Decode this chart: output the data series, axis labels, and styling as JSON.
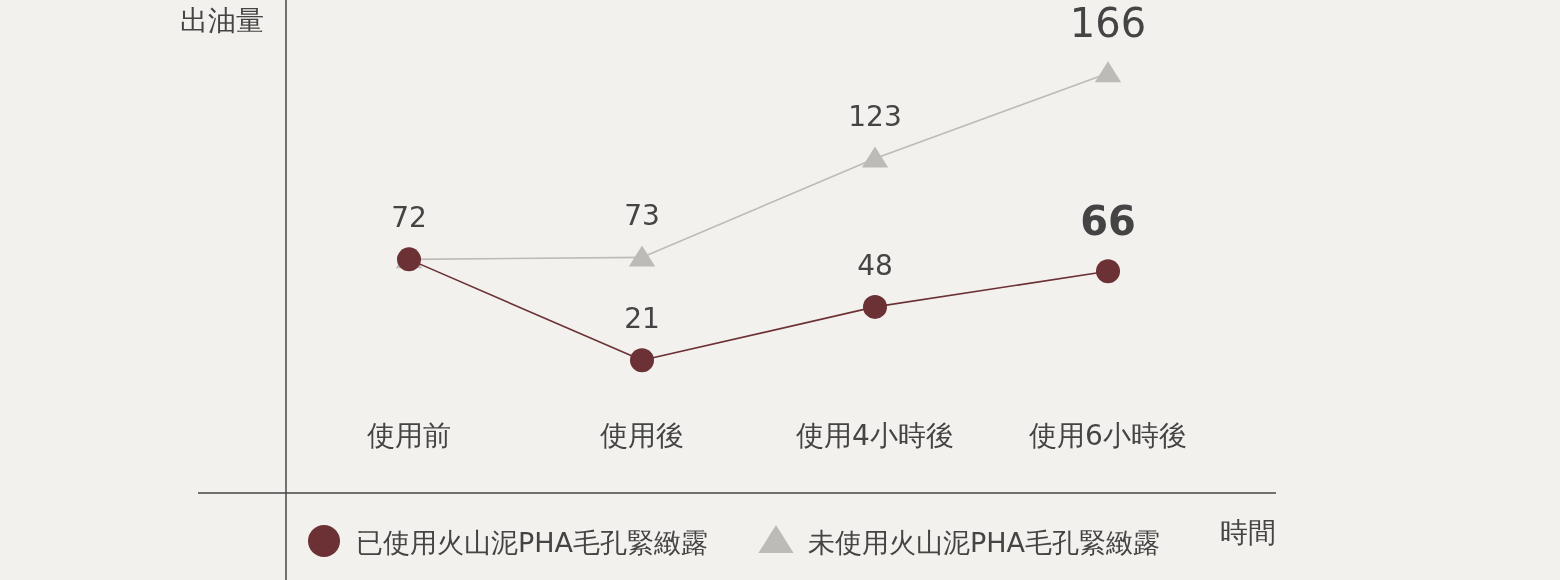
{
  "chart_data": {
    "type": "line",
    "xlabel": "時間",
    "ylabel": "出油量",
    "categories": [
      "使用前",
      "使用後",
      "使用4小時後",
      "使用6小時後"
    ],
    "ylim": [
      -46,
      203
    ],
    "legend": "bottom",
    "series": [
      {
        "name": "已使用火山泥PHA毛孔緊緻露",
        "color": "#6b3134",
        "marker": "circle",
        "values": [
          72,
          21,
          48,
          66
        ],
        "value_labels": [
          null,
          "21",
          "48",
          "66"
        ]
      },
      {
        "name": "未使用火山泥PHA毛孔緊緻露",
        "color": "#bdbbb8",
        "marker": "triangle",
        "values": [
          72,
          73,
          123,
          166
        ],
        "value_labels": [
          "72",
          "73",
          "123",
          "166"
        ]
      }
    ]
  }
}
